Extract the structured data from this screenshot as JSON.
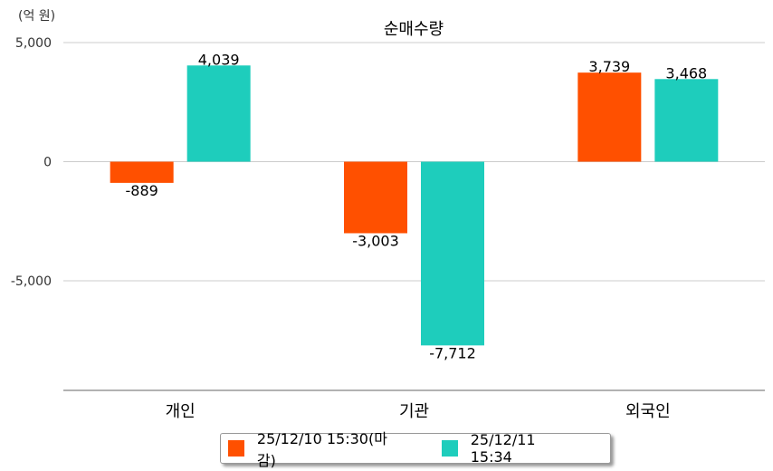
{
  "chart_data": {
    "type": "bar",
    "title": "순매수량",
    "unit_label": "(억 원)",
    "categories": [
      "개인",
      "기관",
      "외국인"
    ],
    "series": [
      {
        "name": "25/12/10 15:30(마감)",
        "color": "#FF5000",
        "values": [
          -889,
          -3003,
          3739
        ],
        "labels": [
          "-889",
          "-3,003",
          "3,739"
        ]
      },
      {
        "name": "25/12/11 15:34",
        "color": "#1ECDBC",
        "values": [
          4039,
          -7712,
          3468
        ],
        "labels": [
          "4,039",
          "-7,712",
          "3,468"
        ]
      }
    ],
    "yticks": [
      5000,
      0,
      -5000
    ],
    "ytick_labels": [
      "5,000",
      "0",
      "-5,000"
    ],
    "ylim": [
      -9600,
      5000
    ],
    "grid": true,
    "legend_position": "bottom"
  }
}
